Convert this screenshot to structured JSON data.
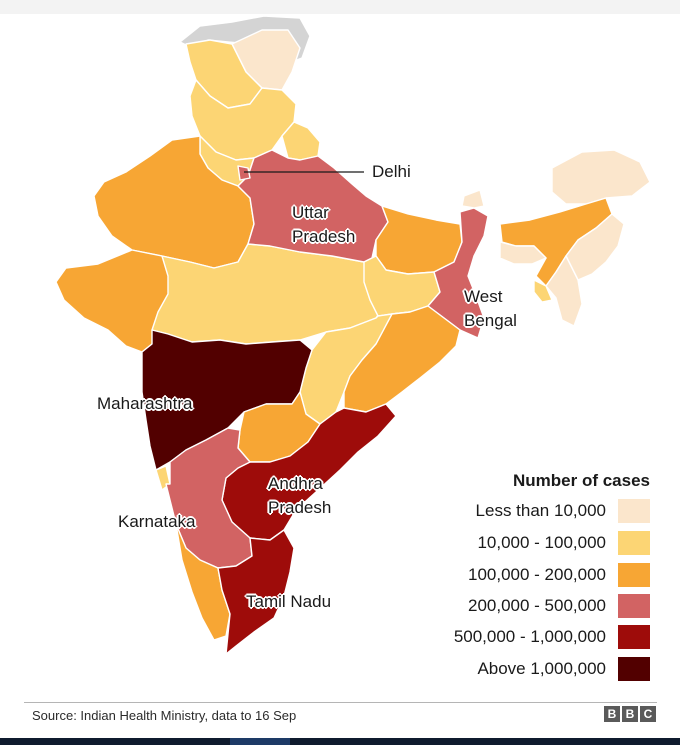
{
  "colors": {
    "less_than_10000": "#fbe6cc",
    "c10000_100000": "#fcd574",
    "c100000_200000": "#f7a634",
    "c200000_500000": "#d26363",
    "c500000_1000000": "#9e0c0a",
    "above_1000000": "#520000",
    "no_data": "#d4d4d4",
    "border": "#ffffff"
  },
  "labels": {
    "delhi": "Delhi",
    "uttar_pradesh": "Uttar Pradesh",
    "west_bengal": "West Bengal",
    "maharashtra": "Maharashtra",
    "karnataka": "Karnataka",
    "andhra_pradesh": "Andhra Pradesh",
    "tamil_nadu": "Tamil Nadu"
  },
  "legend": {
    "title": "Number of cases",
    "items": [
      {
        "label": "Less than 10,000",
        "color": "#fbe6cc"
      },
      {
        "label": "10,000 - 100,000",
        "color": "#fcd574"
      },
      {
        "label": "100,000 - 200,000",
        "color": "#f7a634"
      },
      {
        "label": "200,000 - 500,000",
        "color": "#d26363"
      },
      {
        "label": "500,000 - 1,000,000",
        "color": "#9e0c0a"
      },
      {
        "label": "Above  1,000,000",
        "color": "#520000"
      }
    ]
  },
  "source": "Source: Indian Health Ministry, data to 16 Sep",
  "logo": [
    "B",
    "B",
    "C"
  ]
}
